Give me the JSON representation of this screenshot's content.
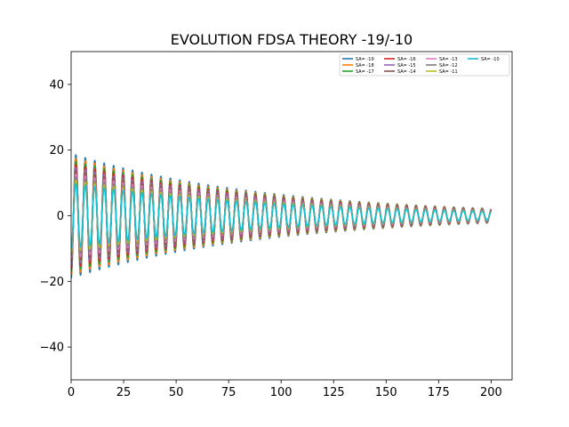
{
  "chart_data": {
    "type": "line",
    "title": "EVOLUTION FDSA THEORY -19/-10",
    "xlabel": "",
    "ylabel": "",
    "xlim": [
      0,
      210
    ],
    "ylim": [
      -50,
      50
    ],
    "xticks": [
      0,
      25,
      50,
      75,
      100,
      125,
      150,
      175,
      200
    ],
    "yticks": [
      -40,
      -20,
      0,
      20,
      40
    ],
    "grid": false,
    "legend_position": "top-right",
    "legend_columns": 4,
    "period": 4.5,
    "series": [
      {
        "name": "SA= -19",
        "color": "#1f77b4",
        "amplitude_start": 19.0,
        "amplitude_end": 2.2
      },
      {
        "name": "SA= -18",
        "color": "#ff7f0e",
        "amplitude_start": 18.0,
        "amplitude_end": 2.1
      },
      {
        "name": "SA= -17",
        "color": "#2ca02c",
        "amplitude_start": 17.0,
        "amplitude_end": 2.0
      },
      {
        "name": "SA= -16",
        "color": "#d62728",
        "amplitude_start": 16.0,
        "amplitude_end": 1.9
      },
      {
        "name": "SA= -15",
        "color": "#9467bd",
        "amplitude_start": 15.0,
        "amplitude_end": 1.8
      },
      {
        "name": "SA= -14",
        "color": "#8c564b",
        "amplitude_start": 14.0,
        "amplitude_end": 1.7
      },
      {
        "name": "SA= -13",
        "color": "#e377c2",
        "amplitude_start": 13.0,
        "amplitude_end": 1.6
      },
      {
        "name": "SA= -12",
        "color": "#7f7f7f",
        "amplitude_start": 12.0,
        "amplitude_end": 1.5
      },
      {
        "name": "SA= -11",
        "color": "#bcbd22",
        "amplitude_start": 11.0,
        "amplitude_end": 1.4
      },
      {
        "name": "SA= -10",
        "color": "#17becf",
        "amplitude_start": 10.0,
        "amplitude_end": 1.3
      }
    ]
  }
}
